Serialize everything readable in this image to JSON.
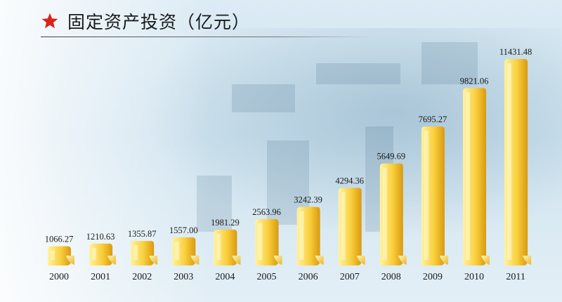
{
  "header": {
    "title": "固定资产投资（亿元）",
    "star_icon": "star-icon",
    "star_color": "#d9241b"
  },
  "colors": {
    "bar_light": "#fff3a0",
    "bar_mid": "#f9cf3c",
    "bar_dark": "#d99a10"
  },
  "chart_data": {
    "type": "bar",
    "title": "固定资产投资（亿元）",
    "categories": [
      "2000",
      "2001",
      "2002",
      "2003",
      "2004",
      "2005",
      "2006",
      "2007",
      "2008",
      "2009",
      "2010",
      "2011"
    ],
    "values": [
      1066.27,
      1210.63,
      1355.87,
      1557.0,
      1981.29,
      2563.96,
      3242.39,
      4294.36,
      5649.69,
      7695.27,
      9821.06,
      11431.48
    ],
    "labels": [
      "1066.27",
      "1210.63",
      "1355.87",
      "1557.00",
      "1981.29",
      "2563.96",
      "3242.39",
      "4294.36",
      "5649.69",
      "7695.27",
      "9821.06",
      "11431.48"
    ],
    "xlabel": "",
    "ylabel": "",
    "ylim": [
      0,
      11431.48
    ],
    "grid": false,
    "legend": "none"
  }
}
